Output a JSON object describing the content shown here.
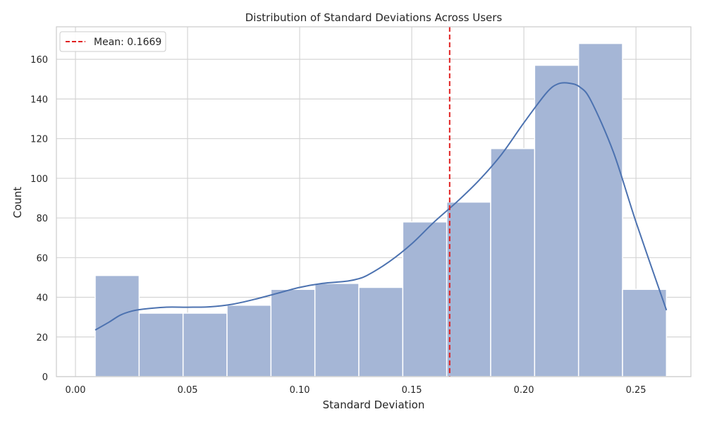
{
  "chart_data": {
    "type": "histogram",
    "title": "Distribution of Standard Deviations Across Users",
    "xlabel": "Standard Deviation",
    "ylabel": "Count",
    "xlim": [
      -0.0085,
      0.2745
    ],
    "ylim": [
      0,
      176.4
    ],
    "xticks": [
      0.0,
      0.05,
      0.1,
      0.15,
      0.2,
      0.25
    ],
    "xtick_labels": [
      "0.00",
      "0.05",
      "0.10",
      "0.15",
      "0.20",
      "0.25"
    ],
    "yticks": [
      0,
      20,
      40,
      60,
      80,
      100,
      120,
      140,
      160
    ],
    "ytick_labels": [
      "0",
      "20",
      "40",
      "60",
      "80",
      "100",
      "120",
      "140",
      "160"
    ],
    "grid": true,
    "legend_position": "top-left",
    "bar_color": "#a5b6d6",
    "kde_color": "#4c72b0",
    "mean_line_color": "#e02020",
    "bins": [
      {
        "x0": 0.0088,
        "x1": 0.0284,
        "count": 51
      },
      {
        "x0": 0.0284,
        "x1": 0.048,
        "count": 32
      },
      {
        "x0": 0.048,
        "x1": 0.0676,
        "count": 32
      },
      {
        "x0": 0.0676,
        "x1": 0.0872,
        "count": 36
      },
      {
        "x0": 0.0872,
        "x1": 0.1068,
        "count": 44
      },
      {
        "x0": 0.1068,
        "x1": 0.1264,
        "count": 47
      },
      {
        "x0": 0.1264,
        "x1": 0.146,
        "count": 45
      },
      {
        "x0": 0.146,
        "x1": 0.1656,
        "count": 78
      },
      {
        "x0": 0.1656,
        "x1": 0.1852,
        "count": 88
      },
      {
        "x0": 0.1852,
        "x1": 0.2048,
        "count": 115
      },
      {
        "x0": 0.2048,
        "x1": 0.2244,
        "count": 157
      },
      {
        "x0": 0.2244,
        "x1": 0.244,
        "count": 168
      },
      {
        "x0": 0.244,
        "x1": 0.2636,
        "count": 44
      }
    ],
    "kde": {
      "x": [
        0.0088,
        0.015,
        0.02,
        0.025,
        0.03,
        0.04,
        0.05,
        0.06,
        0.07,
        0.08,
        0.09,
        0.1,
        0.11,
        0.12,
        0.125,
        0.13,
        0.14,
        0.15,
        0.16,
        0.17,
        0.18,
        0.19,
        0.2,
        0.21,
        0.215,
        0.22,
        0.225,
        0.23,
        0.24,
        0.25,
        0.2636
      ],
      "y": [
        23.5,
        27.5,
        31,
        33,
        34,
        35,
        35,
        35.2,
        36.5,
        39,
        42,
        45,
        47,
        48,
        49,
        51,
        58,
        67,
        78,
        88,
        99,
        112,
        128,
        143,
        147.5,
        148,
        146,
        139,
        113,
        78,
        33.5
      ]
    },
    "mean": {
      "value": 0.1669,
      "label": "Mean: 0.1669"
    }
  }
}
